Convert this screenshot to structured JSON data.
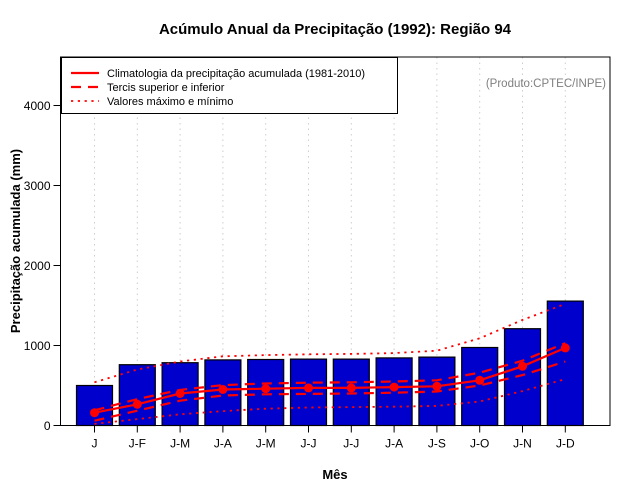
{
  "title": "Acúmulo Anual da Precipitação (1992): Região 94",
  "watermark": "(Produto:CPTEC/INPE)",
  "legend": {
    "items": [
      {
        "label": "Climatologia da precipitação acumulada (1981-2010)",
        "style": "solid"
      },
      {
        "label": "Tercis superior e inferior",
        "style": "dashed"
      },
      {
        "label": "Valores máximo e mínimo",
        "style": "dotted"
      }
    ]
  },
  "colors": {
    "bar": "#0000CD",
    "bar_border": "#000000",
    "line": "#FF0000",
    "grid": "#CDCDCD",
    "axis": "#000000",
    "watermark": "#7f7f7f"
  },
  "chart_data": {
    "type": "bar",
    "title": "Acúmulo Anual da Precipitação (1992): Região 94",
    "xlabel": "Mês",
    "ylabel": "Precipitação acumulada (mm)",
    "categories": [
      "J",
      "J-F",
      "J-M",
      "J-A",
      "J-M",
      "J-J",
      "J-J",
      "J-A",
      "J-S",
      "J-O",
      "J-N",
      "J-D"
    ],
    "bar_values": [
      500,
      760,
      785,
      820,
      825,
      830,
      830,
      845,
      855,
      975,
      1210,
      1555
    ],
    "series": [
      {
        "name": "Climatologia da precipitação acumulada (1981-2010)",
        "style": "solid",
        "marker": true,
        "values": [
          160,
          265,
          400,
          450,
          460,
          470,
          470,
          480,
          490,
          565,
          740,
          970
        ]
      },
      {
        "name": "Tercil superior",
        "style": "dashed",
        "marker": false,
        "values": [
          190,
          330,
          445,
          505,
          525,
          535,
          540,
          550,
          565,
          660,
          810,
          1030
        ]
      },
      {
        "name": "Tercil inferior",
        "style": "dashed",
        "marker": false,
        "values": [
          60,
          185,
          310,
          375,
          390,
          395,
          400,
          410,
          425,
          500,
          630,
          800
        ]
      },
      {
        "name": "Valor máximo",
        "style": "dotted",
        "marker": false,
        "values": [
          540,
          700,
          800,
          865,
          880,
          890,
          895,
          905,
          935,
          1090,
          1320,
          1520
        ]
      },
      {
        "name": "Valor mínimo",
        "style": "dotted",
        "marker": false,
        "values": [
          20,
          80,
          140,
          180,
          210,
          225,
          230,
          235,
          245,
          300,
          430,
          580
        ]
      }
    ],
    "ylim": [
      0,
      4600
    ],
    "y_ticks": [
      0,
      1000,
      2000,
      3000,
      4000
    ],
    "grid": "vertical-dotted",
    "legend_position": "top-left",
    "annotation": "(Produto:CPTEC/INPE)"
  }
}
